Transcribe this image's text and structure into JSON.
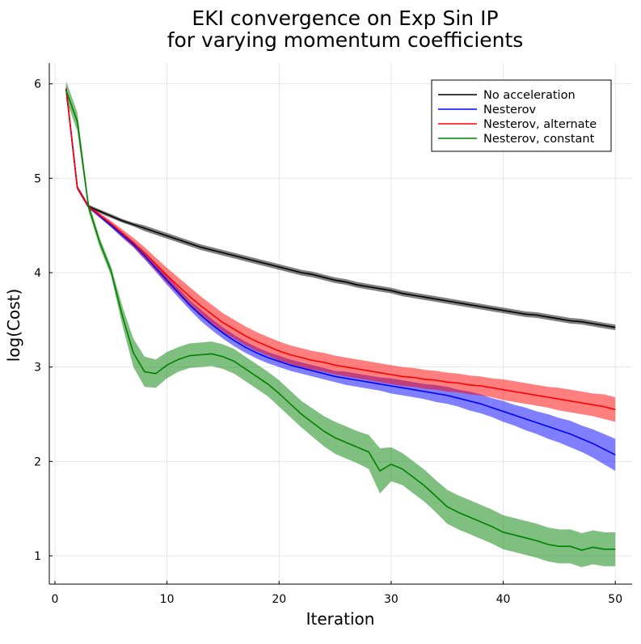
{
  "chart_data": {
    "type": "line",
    "title": [
      "EKI convergence on Exp Sin IP",
      "for varying momentum coefficients"
    ],
    "xlabel": "Iteration",
    "ylabel": "log(Cost)",
    "xlim": [
      -0.5,
      51.5
    ],
    "ylim": [
      0.7,
      6.22
    ],
    "xticks": [
      0,
      10,
      20,
      30,
      40,
      50
    ],
    "yticks": [
      1,
      2,
      3,
      4,
      5,
      6
    ],
    "grid": true,
    "legend_position": "top-right",
    "x": [
      1,
      2,
      3,
      4,
      5,
      6,
      7,
      8,
      9,
      10,
      11,
      12,
      13,
      14,
      15,
      16,
      17,
      18,
      19,
      20,
      21,
      22,
      23,
      24,
      25,
      26,
      27,
      28,
      29,
      30,
      31,
      32,
      33,
      34,
      35,
      36,
      37,
      38,
      39,
      40,
      41,
      42,
      43,
      44,
      45,
      46,
      47,
      48,
      49,
      50
    ],
    "series": [
      {
        "name": "No acceleration",
        "color": "#000000",
        "values": [
          5.95,
          4.9,
          4.7,
          4.65,
          4.6,
          4.55,
          4.51,
          4.47,
          4.43,
          4.39,
          4.35,
          4.31,
          4.27,
          4.24,
          4.21,
          4.18,
          4.15,
          4.12,
          4.09,
          4.06,
          4.03,
          4.0,
          3.98,
          3.95,
          3.92,
          3.9,
          3.87,
          3.85,
          3.83,
          3.81,
          3.78,
          3.76,
          3.74,
          3.72,
          3.7,
          3.68,
          3.66,
          3.64,
          3.62,
          3.6,
          3.58,
          3.56,
          3.55,
          3.53,
          3.51,
          3.49,
          3.48,
          3.46,
          3.44,
          3.42
        ],
        "band": [
          0.04,
          0.02,
          0.02,
          0.02,
          0.02,
          0.02,
          0.02,
          0.03,
          0.03,
          0.03,
          0.03,
          0.03,
          0.03,
          0.03,
          0.03,
          0.03,
          0.03,
          0.03,
          0.03,
          0.03,
          0.03,
          0.03,
          0.03,
          0.03,
          0.03,
          0.03,
          0.03,
          0.03,
          0.03,
          0.03,
          0.03,
          0.03,
          0.03,
          0.03,
          0.03,
          0.03,
          0.03,
          0.03,
          0.03,
          0.03,
          0.03,
          0.03,
          0.03,
          0.03,
          0.03,
          0.03,
          0.03,
          0.03,
          0.03,
          0.03
        ]
      },
      {
        "name": "Nesterov",
        "color": "#0000ff",
        "values": [
          5.95,
          4.9,
          4.7,
          4.6,
          4.5,
          4.4,
          4.3,
          4.18,
          4.05,
          3.92,
          3.79,
          3.66,
          3.55,
          3.45,
          3.36,
          3.28,
          3.21,
          3.15,
          3.1,
          3.06,
          3.02,
          2.99,
          2.96,
          2.93,
          2.9,
          2.88,
          2.86,
          2.84,
          2.82,
          2.8,
          2.78,
          2.76,
          2.74,
          2.72,
          2.7,
          2.67,
          2.64,
          2.61,
          2.57,
          2.53,
          2.49,
          2.45,
          2.41,
          2.37,
          2.33,
          2.29,
          2.24,
          2.19,
          2.13,
          2.07
        ],
        "band": [
          0.04,
          0.02,
          0.02,
          0.02,
          0.02,
          0.03,
          0.03,
          0.04,
          0.04,
          0.05,
          0.05,
          0.05,
          0.06,
          0.06,
          0.06,
          0.06,
          0.06,
          0.06,
          0.06,
          0.06,
          0.06,
          0.06,
          0.06,
          0.06,
          0.06,
          0.07,
          0.07,
          0.07,
          0.07,
          0.08,
          0.08,
          0.08,
          0.08,
          0.09,
          0.09,
          0.09,
          0.1,
          0.1,
          0.1,
          0.11,
          0.11,
          0.12,
          0.12,
          0.13,
          0.13,
          0.14,
          0.14,
          0.15,
          0.16,
          0.17
        ]
      },
      {
        "name": "Nesterov, alternate",
        "color": "#ff0000",
        "values": [
          5.95,
          4.9,
          4.7,
          4.61,
          4.52,
          4.42,
          4.32,
          4.21,
          4.09,
          3.97,
          3.86,
          3.75,
          3.65,
          3.56,
          3.47,
          3.4,
          3.33,
          3.27,
          3.22,
          3.17,
          3.13,
          3.1,
          3.07,
          3.05,
          3.02,
          3.0,
          2.98,
          2.96,
          2.94,
          2.92,
          2.9,
          2.89,
          2.87,
          2.86,
          2.84,
          2.83,
          2.81,
          2.8,
          2.78,
          2.76,
          2.74,
          2.72,
          2.7,
          2.68,
          2.66,
          2.64,
          2.62,
          2.6,
          2.58,
          2.55
        ],
        "band": [
          0.04,
          0.02,
          0.02,
          0.02,
          0.03,
          0.04,
          0.05,
          0.06,
          0.07,
          0.08,
          0.09,
          0.1,
          0.1,
          0.1,
          0.1,
          0.1,
          0.1,
          0.1,
          0.1,
          0.1,
          0.1,
          0.1,
          0.1,
          0.1,
          0.1,
          0.1,
          0.1,
          0.1,
          0.1,
          0.1,
          0.1,
          0.1,
          0.1,
          0.1,
          0.1,
          0.1,
          0.1,
          0.1,
          0.1,
          0.11,
          0.11,
          0.11,
          0.11,
          0.11,
          0.12,
          0.12,
          0.12,
          0.12,
          0.13,
          0.13
        ]
      },
      {
        "name": "Nesterov, constant",
        "color": "#008000",
        "values": [
          5.93,
          5.6,
          4.7,
          4.32,
          4.02,
          3.55,
          3.15,
          2.95,
          2.93,
          3.02,
          3.08,
          3.12,
          3.13,
          3.14,
          3.11,
          3.06,
          2.98,
          2.9,
          2.82,
          2.72,
          2.61,
          2.5,
          2.41,
          2.32,
          2.25,
          2.2,
          2.15,
          2.1,
          1.9,
          1.97,
          1.92,
          1.83,
          1.74,
          1.63,
          1.52,
          1.46,
          1.41,
          1.36,
          1.31,
          1.25,
          1.22,
          1.19,
          1.16,
          1.12,
          1.1,
          1.1,
          1.06,
          1.09,
          1.07,
          1.07
        ],
        "band": [
          0.1,
          0.1,
          0.05,
          0.05,
          0.05,
          0.1,
          0.15,
          0.16,
          0.15,
          0.14,
          0.13,
          0.13,
          0.13,
          0.13,
          0.13,
          0.13,
          0.13,
          0.13,
          0.13,
          0.14,
          0.14,
          0.14,
          0.15,
          0.16,
          0.17,
          0.17,
          0.17,
          0.18,
          0.24,
          0.18,
          0.17,
          0.17,
          0.17,
          0.17,
          0.18,
          0.18,
          0.18,
          0.18,
          0.18,
          0.18,
          0.18,
          0.18,
          0.18,
          0.18,
          0.18,
          0.18,
          0.18,
          0.18,
          0.18,
          0.18
        ]
      }
    ]
  }
}
